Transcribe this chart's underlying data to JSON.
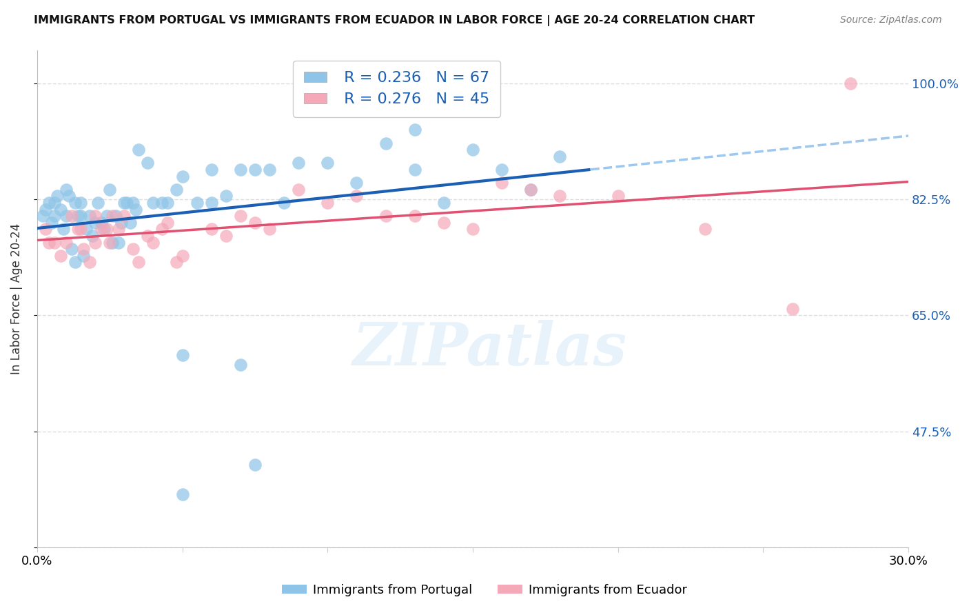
{
  "title": "IMMIGRANTS FROM PORTUGAL VS IMMIGRANTS FROM ECUADOR IN LABOR FORCE | AGE 20-24 CORRELATION CHART",
  "source": "Source: ZipAtlas.com",
  "ylabel": "In Labor Force | Age 20-24",
  "xlim": [
    0.0,
    0.3
  ],
  "ylim": [
    0.3,
    1.05
  ],
  "xticks": [
    0.0,
    0.05,
    0.1,
    0.15,
    0.2,
    0.25,
    0.3
  ],
  "xticklabels": [
    "0.0%",
    "",
    "",
    "",
    "",
    "",
    "30.0%"
  ],
  "ytick_positions": [
    0.3,
    0.475,
    0.65,
    0.825,
    1.0
  ],
  "yticklabels_right": [
    "",
    "47.5%",
    "65.0%",
    "82.5%",
    "100.0%"
  ],
  "portugal_R": 0.236,
  "portugal_N": 67,
  "ecuador_R": 0.276,
  "ecuador_N": 45,
  "portugal_color": "#8ec4e8",
  "ecuador_color": "#f4a8b8",
  "portugal_line_color": "#1a5fb4",
  "ecuador_line_color": "#e05070",
  "dashed_line_color": "#9ec8ee",
  "legend_label_portugal": "Immigrants from Portugal",
  "legend_label_ecuador": "Immigrants from Ecuador",
  "portugal_x": [
    0.002,
    0.003,
    0.004,
    0.005,
    0.006,
    0.006,
    0.007,
    0.008,
    0.009,
    0.01,
    0.01,
    0.011,
    0.012,
    0.013,
    0.013,
    0.014,
    0.015,
    0.015,
    0.016,
    0.017,
    0.018,
    0.019,
    0.02,
    0.021,
    0.022,
    0.023,
    0.024,
    0.025,
    0.026,
    0.027,
    0.028,
    0.029,
    0.03,
    0.031,
    0.032,
    0.033,
    0.034,
    0.035,
    0.038,
    0.04,
    0.043,
    0.045,
    0.048,
    0.05,
    0.06,
    0.065,
    0.07,
    0.075,
    0.08,
    0.085,
    0.09,
    0.1,
    0.11,
    0.12,
    0.13,
    0.14,
    0.15,
    0.16,
    0.17,
    0.18,
    0.055,
    0.06,
    0.13,
    0.05,
    0.07,
    0.05,
    0.075
  ],
  "portugal_y": [
    0.8,
    0.81,
    0.82,
    0.79,
    0.8,
    0.82,
    0.83,
    0.81,
    0.78,
    0.84,
    0.8,
    0.83,
    0.75,
    0.73,
    0.82,
    0.8,
    0.82,
    0.8,
    0.74,
    0.78,
    0.8,
    0.77,
    0.79,
    0.82,
    0.79,
    0.78,
    0.8,
    0.84,
    0.76,
    0.8,
    0.76,
    0.79,
    0.82,
    0.82,
    0.79,
    0.82,
    0.81,
    0.9,
    0.88,
    0.82,
    0.82,
    0.82,
    0.84,
    0.86,
    0.82,
    0.83,
    0.87,
    0.87,
    0.87,
    0.82,
    0.88,
    0.88,
    0.85,
    0.91,
    0.87,
    0.82,
    0.9,
    0.87,
    0.84,
    0.89,
    0.82,
    0.87,
    0.93,
    0.59,
    0.575,
    0.38,
    0.425
  ],
  "ecuador_x": [
    0.003,
    0.004,
    0.006,
    0.008,
    0.01,
    0.012,
    0.014,
    0.015,
    0.016,
    0.018,
    0.02,
    0.02,
    0.022,
    0.024,
    0.025,
    0.026,
    0.028,
    0.03,
    0.033,
    0.035,
    0.038,
    0.04,
    0.043,
    0.045,
    0.048,
    0.05,
    0.06,
    0.065,
    0.07,
    0.075,
    0.08,
    0.09,
    0.1,
    0.11,
    0.12,
    0.13,
    0.14,
    0.15,
    0.16,
    0.17,
    0.18,
    0.2,
    0.23,
    0.26,
    0.28
  ],
  "ecuador_y": [
    0.78,
    0.76,
    0.76,
    0.74,
    0.76,
    0.8,
    0.78,
    0.78,
    0.75,
    0.73,
    0.8,
    0.76,
    0.78,
    0.78,
    0.76,
    0.8,
    0.78,
    0.8,
    0.75,
    0.73,
    0.77,
    0.76,
    0.78,
    0.79,
    0.73,
    0.74,
    0.78,
    0.77,
    0.8,
    0.79,
    0.78,
    0.84,
    0.82,
    0.83,
    0.8,
    0.8,
    0.79,
    0.78,
    0.85,
    0.84,
    0.83,
    0.83,
    0.78,
    0.66,
    1.0
  ],
  "watermark": "ZIPatlas",
  "background_color": "#ffffff",
  "grid_color": "#dddddd",
  "solid_line_end_x": 0.19
}
